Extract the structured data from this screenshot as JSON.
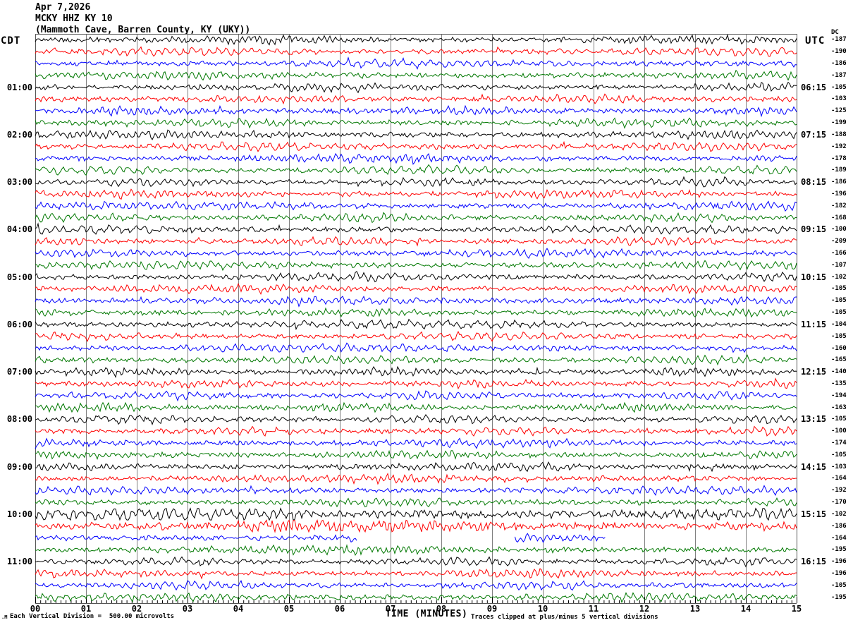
{
  "header": {
    "date": "Apr 7,2026",
    "station_line": "MCKY HHZ KY 10",
    "location_line": "(Mammoth Cave, Barren County, KY (UKY))"
  },
  "left_axis": {
    "timezone": "CDT",
    "hours": [
      "01:00",
      "02:00",
      "03:00",
      "04:00",
      "05:00",
      "06:00",
      "07:00",
      "08:00",
      "09:00",
      "10:00",
      "11:00"
    ]
  },
  "right_axis": {
    "timezone": "UTC",
    "dc_header": "DC",
    "hours": [
      "06:15",
      "07:15",
      "08:15",
      "09:15",
      "10:15",
      "11:15",
      "12:15",
      "13:15",
      "14:15",
      "15:15",
      "16:15"
    ]
  },
  "x_axis": {
    "title": "TIME (MINUTES)",
    "ticks": [
      "00",
      "01",
      "02",
      "03",
      "04",
      "05",
      "06",
      "07",
      "08",
      "09",
      "10",
      "11",
      "12",
      "13",
      "14",
      "15"
    ]
  },
  "footer": {
    "scale_note": "Each Vertical Division =  500.00 microvolts",
    "clip_note": "Traces clipped at plus/minus 5 vertical divisions",
    "watermark": ".M"
  },
  "colors": {
    "black": "#000000",
    "red": "#ff0000",
    "blue": "#0000ff",
    "green": "#007800",
    "grid": "#808080",
    "border": "#555555",
    "tick": "#000000"
  },
  "chart_data": {
    "type": "line",
    "subtype": "helicorder-seismogram",
    "title": "MCKY HHZ KY 10 — Apr 7,2026 (Mammoth Cave, Barren County, KY (UKY))",
    "xlabel": "TIME (MINUTES)",
    "x_range_minutes": [
      0,
      15
    ],
    "minutes_per_row": 15,
    "rows_per_hour": 4,
    "trace_color_cycle": [
      "black",
      "red",
      "blue",
      "green"
    ],
    "vertical_division_microvolts": 500.0,
    "clip_divisions": 5,
    "waveform": "continuous random seismic background noise, clipped at ±5 divisions",
    "traces": [
      {
        "cdt": "00:00",
        "color": "black",
        "dc": -187,
        "amp": 1.0
      },
      {
        "cdt": "00:15",
        "color": "red",
        "dc": -190,
        "amp": 1.0
      },
      {
        "cdt": "00:30",
        "color": "blue",
        "dc": -186,
        "amp": 1.0
      },
      {
        "cdt": "00:45",
        "color": "green",
        "dc": -187,
        "amp": 1.0
      },
      {
        "cdt": "01:00",
        "color": "black",
        "dc": -105,
        "amp": 1.0
      },
      {
        "cdt": "01:15",
        "color": "red",
        "dc": -103,
        "amp": 1.0
      },
      {
        "cdt": "01:30",
        "color": "blue",
        "dc": -125,
        "amp": 1.0
      },
      {
        "cdt": "01:45",
        "color": "green",
        "dc": -199,
        "amp": 1.0
      },
      {
        "cdt": "02:00",
        "color": "black",
        "dc": -188,
        "amp": 1.0
      },
      {
        "cdt": "02:15",
        "color": "red",
        "dc": -192,
        "amp": 1.0
      },
      {
        "cdt": "02:30",
        "color": "blue",
        "dc": -178,
        "amp": 1.0
      },
      {
        "cdt": "02:45",
        "color": "green",
        "dc": -189,
        "amp": 1.0
      },
      {
        "cdt": "03:00",
        "color": "black",
        "dc": -186,
        "amp": 1.0
      },
      {
        "cdt": "03:15",
        "color": "red",
        "dc": -196,
        "amp": 1.0
      },
      {
        "cdt": "03:30",
        "color": "blue",
        "dc": -182,
        "amp": 1.0
      },
      {
        "cdt": "03:45",
        "color": "green",
        "dc": -168,
        "amp": 1.0
      },
      {
        "cdt": "04:00",
        "color": "black",
        "dc": -100,
        "amp": 1.0
      },
      {
        "cdt": "04:15",
        "color": "red",
        "dc": -209,
        "amp": 1.0
      },
      {
        "cdt": "04:30",
        "color": "blue",
        "dc": -166,
        "amp": 1.0
      },
      {
        "cdt": "04:45",
        "color": "green",
        "dc": -107,
        "amp": 1.0
      },
      {
        "cdt": "05:00",
        "color": "black",
        "dc": -102,
        "amp": 1.0
      },
      {
        "cdt": "05:15",
        "color": "red",
        "dc": -105,
        "amp": 1.0
      },
      {
        "cdt": "05:30",
        "color": "blue",
        "dc": -105,
        "amp": 1.0
      },
      {
        "cdt": "05:45",
        "color": "green",
        "dc": -105,
        "amp": 1.0
      },
      {
        "cdt": "06:00",
        "color": "black",
        "dc": -104,
        "amp": 1.0
      },
      {
        "cdt": "06:15",
        "color": "red",
        "dc": -105,
        "amp": 1.0
      },
      {
        "cdt": "06:30",
        "color": "blue",
        "dc": -160,
        "amp": 1.0
      },
      {
        "cdt": "06:45",
        "color": "green",
        "dc": -165,
        "amp": 1.0
      },
      {
        "cdt": "07:00",
        "color": "black",
        "dc": -140,
        "amp": 1.0
      },
      {
        "cdt": "07:15",
        "color": "red",
        "dc": -135,
        "amp": 1.0
      },
      {
        "cdt": "07:30",
        "color": "blue",
        "dc": -194,
        "amp": 1.0
      },
      {
        "cdt": "07:45",
        "color": "green",
        "dc": -163,
        "amp": 1.0
      },
      {
        "cdt": "08:00",
        "color": "black",
        "dc": -105,
        "amp": 1.0
      },
      {
        "cdt": "08:15",
        "color": "red",
        "dc": -100,
        "amp": 1.0
      },
      {
        "cdt": "08:30",
        "color": "blue",
        "dc": -174,
        "amp": 1.0
      },
      {
        "cdt": "08:45",
        "color": "green",
        "dc": -105,
        "amp": 1.0
      },
      {
        "cdt": "09:00",
        "color": "black",
        "dc": -103,
        "amp": 1.0
      },
      {
        "cdt": "09:15",
        "color": "red",
        "dc": -164,
        "amp": 1.0
      },
      {
        "cdt": "09:30",
        "color": "blue",
        "dc": -192,
        "amp": 1.0
      },
      {
        "cdt": "09:45",
        "color": "green",
        "dc": -170,
        "amp": 1.0
      },
      {
        "cdt": "10:00",
        "color": "black",
        "dc": -102,
        "amp": 1.6
      },
      {
        "cdt": "10:15",
        "color": "red",
        "dc": -186,
        "amp": 1.5
      },
      {
        "cdt": "10:30",
        "color": "blue",
        "dc": -164,
        "amp": 1.0,
        "segments": [
          [
            0,
            6.35
          ],
          [
            9.45,
            11.25
          ]
        ]
      },
      {
        "cdt": "10:45",
        "color": "green",
        "dc": -195,
        "amp": 1.0
      },
      {
        "cdt": "11:00",
        "color": "black",
        "dc": -196,
        "amp": 1.0
      },
      {
        "cdt": "11:15",
        "color": "red",
        "dc": -196,
        "amp": 1.0
      },
      {
        "cdt": "11:30",
        "color": "blue",
        "dc": -105,
        "amp": 1.0
      },
      {
        "cdt": "11:45",
        "color": "green",
        "dc": -195,
        "amp": 1.0
      }
    ]
  }
}
